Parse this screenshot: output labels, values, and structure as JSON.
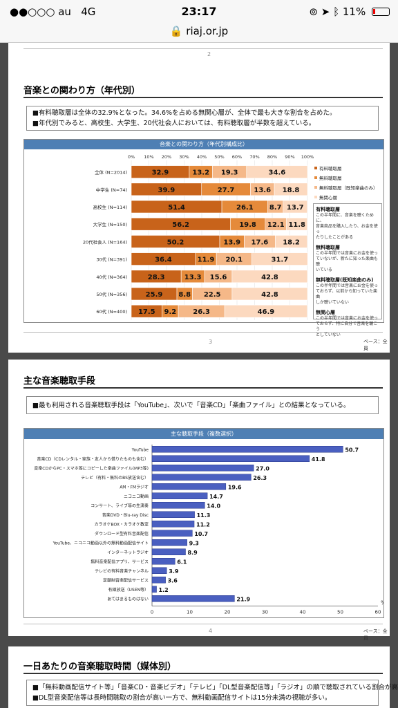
{
  "status": {
    "carrier": "●●○○○ au",
    "network": "4G",
    "time": "23:17",
    "battery": "11%"
  },
  "browser": {
    "url": "riaj.or.jp"
  },
  "page2": {
    "number": "2"
  },
  "slide3": {
    "title": "音楽との関わり方（年代別）",
    "bullets": [
      "■有料聴取層は全体の32.9%となった。34.6%を占める無関心層が、全体で最も大きな割合を占めた。",
      "■年代別でみると、高校生、大学生、20代社会人においては、有料聴取層が半数を超えている。"
    ],
    "chart_header": "音楽との関わり方（年代別構成比）",
    "page_number": "3",
    "base": "ベース：全員"
  },
  "chart_data": [
    {
      "type": "bar",
      "orientation": "horizontal-stacked",
      "title": "音楽との関わり方（年代別構成比）",
      "x_ticks": [
        "0%",
        "10%",
        "20%",
        "30%",
        "40%",
        "50%",
        "60%",
        "70%",
        "80%",
        "90%",
        "100%"
      ],
      "xlim": [
        0,
        100
      ],
      "categories": [
        "全体 (N=2014)",
        "中学生 (N=74)",
        "高校生 (N=114)",
        "大学生 (N=150)",
        "20代社会人 (N=164)",
        "30代 (N=391)",
        "40代 (N=364)",
        "50代 (N=356)",
        "60代 (N=400)"
      ],
      "series": [
        {
          "name": "有料聴取層",
          "color": "#c8631a",
          "values": [
            32.9,
            39.9,
            51.4,
            56.2,
            50.2,
            36.4,
            28.3,
            25.9,
            17.5
          ]
        },
        {
          "name": "無料聴取層",
          "color": "#e58a3a",
          "values": [
            13.2,
            27.7,
            26.1,
            19.8,
            13.9,
            11.9,
            13.3,
            8.8,
            9.2
          ]
        },
        {
          "name": "無料聴取層（既知楽曲のみ）",
          "color": "#f5b888",
          "values": [
            19.3,
            13.6,
            8.7,
            12.1,
            17.6,
            20.1,
            15.6,
            22.5,
            26.3
          ]
        },
        {
          "name": "無関心層",
          "color": "#fcd9bf",
          "values": [
            34.6,
            18.8,
            13.7,
            11.8,
            18.2,
            31.7,
            42.8,
            42.8,
            46.9
          ]
        }
      ],
      "legend": "right",
      "definitions": [
        {
          "title": "有料聴取層",
          "text": [
            "この半年間に、音楽を聴くために、",
            "音楽商品を購入したり、お金を使っ",
            "たりしたことがある"
          ]
        },
        {
          "title": "無料聴取層",
          "text": [
            "この半年間では音楽にお金を使っ",
            "ていないが、新たに知った楽曲も聴",
            "いている"
          ]
        },
        {
          "title": "無料聴取層(既知楽曲のみ)",
          "text": [
            "この半年間では音楽にお金を使っ",
            "ておらず、以前から知っていた楽曲",
            "しか聴いていない"
          ]
        },
        {
          "title": "無関心層",
          "text": [
            "この半年間では音楽にお金を使っ",
            "ておらず、特に自分で音楽を聴こう",
            "としていない"
          ]
        }
      ]
    },
    {
      "type": "bar",
      "orientation": "horizontal",
      "title": "主な聴取手段（複数選択）",
      "x_ticks": [
        "0",
        "10",
        "20",
        "30",
        "40",
        "50",
        "60"
      ],
      "xlim": [
        0,
        60
      ],
      "unit": "%",
      "categories": [
        "YouTube",
        "音楽CD（CDレンタル・家族・友人から借りたものも含む）",
        "音楽CDからPC・スマホ等にコピーした楽曲ファイル(MP3等)",
        "テレビ（有料・無料のBS放送含む）",
        "AM・FMラジオ",
        "ニコニコ動画",
        "コンサート、ライブ等の生演奏",
        "音楽DVD・Blu-ray Disc",
        "カラオケBOX・カラオケ教室",
        "ダウンロード型有料音楽配信",
        "YouTube、ニコニコ動画以外の無料動画配信サイト",
        "インターネットラジオ",
        "無料音楽配信アプリ、サービス",
        "テレビの有料音楽チャンネル",
        "定額制音楽配信サービス",
        "有線放送（USEN等）",
        "あてはまるものはない"
      ],
      "values": [
        50.7,
        41.8,
        27.0,
        26.3,
        19.6,
        14.7,
        14.0,
        11.3,
        11.2,
        10.7,
        9.3,
        8.9,
        6.1,
        3.9,
        3.6,
        1.2,
        21.9
      ],
      "value_labels": [
        "50.7",
        "41.8",
        "27.0",
        "26.3",
        "19.6",
        "14.7",
        "14.0",
        "11.3",
        "11.2",
        "10.7",
        "9.3",
        "8.9",
        "6.1",
        "3.9",
        "3.6",
        "1.2",
        "21.9"
      ],
      "color": "#4a5fc0"
    }
  ],
  "slide4": {
    "title": "主な音楽聴取手段",
    "bullet": "■最も利用される音楽聴取手段は「YouTube」、次いで「音楽CD」「楽曲ファイル」との結果となっている。",
    "chart_header": "主な聴取手段（複数選択）",
    "page_number": "4",
    "base": "ベース：全員"
  },
  "slide5": {
    "title": "一日あたりの音楽聴取時間（媒体別）",
    "bullets": [
      "■「無料動画配信サイト等」「音楽CD・音楽ビデオ」「テレビ」「DL型音楽配信等」「ラジオ」の順で聴取されている割合が高い。",
      "■DL型音楽配信等は長時間聴取の割合が高い一方で、無料動画配信サイトは15分未満の視聴が多い。"
    ]
  }
}
